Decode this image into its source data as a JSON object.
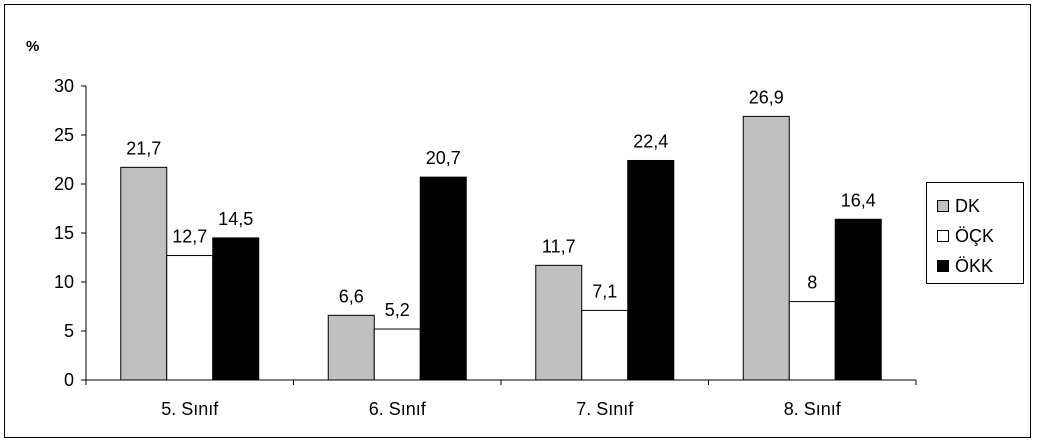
{
  "chart_data": {
    "type": "bar",
    "ylabel": "%",
    "ylim": [
      0,
      30
    ],
    "yticks": [
      "0",
      "5",
      "10",
      "15",
      "20",
      "25",
      "30"
    ],
    "categories": [
      "5. Sınıf",
      "6. Sınıf",
      "7. Sınıf",
      "8. Sınıf"
    ],
    "legend_position": "right",
    "series": [
      {
        "name": "DK",
        "color": "#c0c0c0",
        "values": [
          21.7,
          6.6,
          11.7,
          26.9
        ],
        "labels": [
          "21,7",
          "6,6",
          "11,7",
          "26,9"
        ]
      },
      {
        "name": "ÖÇK",
        "color": "#ffffff",
        "values": [
          12.7,
          5.2,
          7.1,
          8
        ],
        "labels": [
          "12,7",
          "5,2",
          "7,1",
          "8"
        ]
      },
      {
        "name": "ÖKK",
        "color": "#000000",
        "values": [
          14.5,
          20.7,
          22.4,
          16.4
        ],
        "labels": [
          "14,5",
          "20,7",
          "22,4",
          "16,4"
        ]
      }
    ]
  }
}
